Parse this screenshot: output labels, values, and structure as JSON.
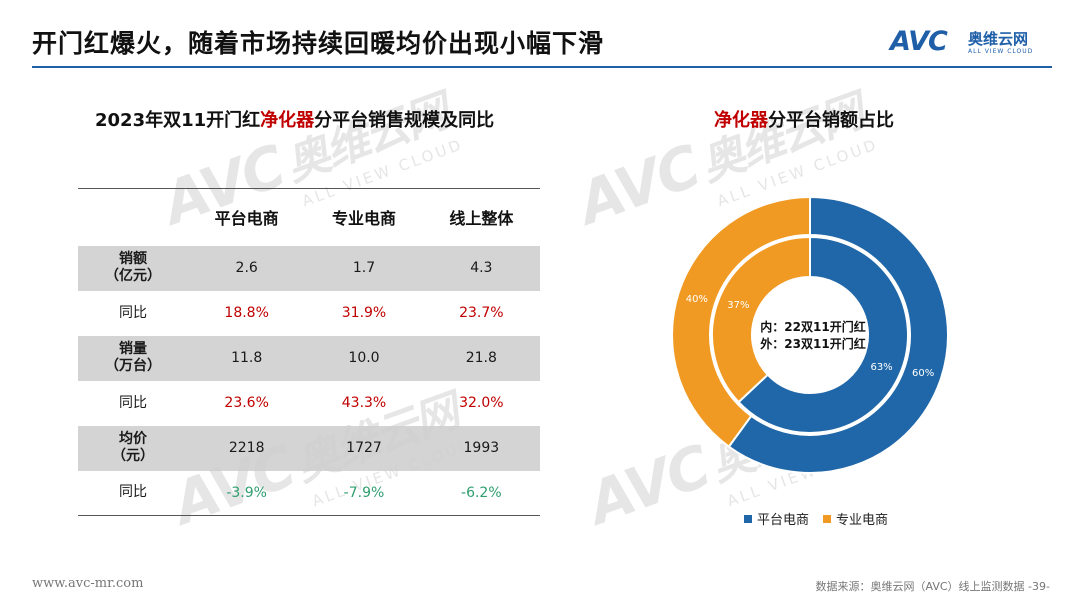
{
  "header": {
    "title": "开门红爆火，随着市场持续回暖均价出现小幅下滑"
  },
  "logo": {
    "mark": "AVC",
    "cn": "奥维云网",
    "en": "ALL VIEW CLOUD"
  },
  "watermark": {
    "mark": "AVC",
    "cn": "奥维云网",
    "en": "ALL VIEW CLOUD"
  },
  "table": {
    "title_prefix": "2023年双11开门红",
    "title_highlight": "净化器",
    "title_suffix": "分平台销售规模及同比",
    "columns": [
      "平台电商",
      "专业电商",
      "线上整体"
    ],
    "rows": [
      {
        "label_line1": "销额",
        "label_line2": "（亿元）",
        "values": [
          "2.6",
          "1.7",
          "4.3"
        ]
      },
      {
        "label_line1": "同比",
        "label_line2": "",
        "values": [
          "18.8%",
          "31.9%",
          "23.7%"
        ]
      },
      {
        "label_line1": "销量",
        "label_line2": "（万台）",
        "values": [
          "11.8",
          "10.0",
          "21.8"
        ]
      },
      {
        "label_line1": "同比",
        "label_line2": "",
        "values": [
          "23.6%",
          "43.3%",
          "32.0%"
        ]
      },
      {
        "label_line1": "均价",
        "label_line2": "（元）",
        "values": [
          "2218",
          "1727",
          "1993"
        ]
      },
      {
        "label_line1": "同比",
        "label_line2": "",
        "values": [
          "-3.9%",
          "-7.9%",
          "-6.2%"
        ]
      }
    ]
  },
  "chart_data": {
    "type": "pie",
    "title_highlight": "净化器",
    "title_suffix": "分平台销额占比",
    "center_text_line1": "内：22双11开门红",
    "center_text_line2": "外：23双11开门红",
    "series": [
      {
        "name": "内：22双11开门红",
        "ring": "inner",
        "values": [
          63,
          37
        ],
        "labels": [
          "63%",
          "37%"
        ]
      },
      {
        "name": "外：23双11开门红",
        "ring": "outer",
        "values": [
          60,
          40
        ],
        "labels": [
          "60%",
          "40%"
        ]
      }
    ],
    "categories": [
      "平台电商",
      "专业电商"
    ],
    "colors": [
      "#1f67a8",
      "#f19a23"
    ],
    "legend": [
      "平台电商",
      "专业电商"
    ],
    "legend_position": "bottom"
  },
  "footer": {
    "url": "www.avc-mr.com",
    "source": "数据来源：奥维云网（AVC）线上监测数据 -39-"
  }
}
